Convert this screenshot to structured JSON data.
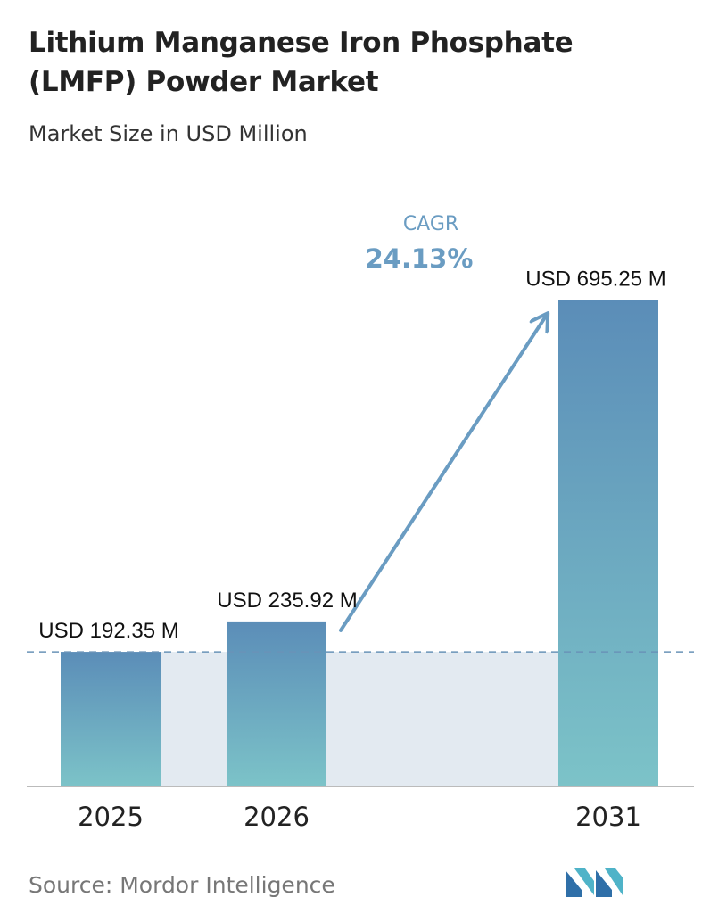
{
  "header": {
    "title": "Lithium Manganese Iron Phosphate (LMFP) Powder Market",
    "subtitle": "Market Size in USD Million"
  },
  "chart_data": {
    "type": "bar",
    "title": "Lithium Manganese Iron Phosphate (LMFP) Powder Market",
    "subtitle": "Market Size in USD Million",
    "categories": [
      "2025",
      "2026",
      "2031"
    ],
    "values": [
      192.35,
      235.92,
      695.25
    ],
    "value_labels": [
      "USD 192.35 M",
      "USD 235.92 M",
      "USD 695.25 M"
    ],
    "ylim": [
      0,
      780
    ],
    "reference_line_value": 192.35,
    "annotation": {
      "label": "CAGR",
      "value": "24.13%"
    },
    "grid": false,
    "colors": {
      "bar_top": "#5b8db8",
      "bar_bottom": "#7cc3c8",
      "band": "#e3eaf1",
      "reference_line": "#6a93b8",
      "arrow": "#6a9cc2",
      "cagr_text": "#6a9cc2",
      "axis": "#bbbbbb"
    }
  },
  "footer": {
    "source": "Source: Mordor Intelligence",
    "logo": "mordor-intelligence-logo"
  }
}
